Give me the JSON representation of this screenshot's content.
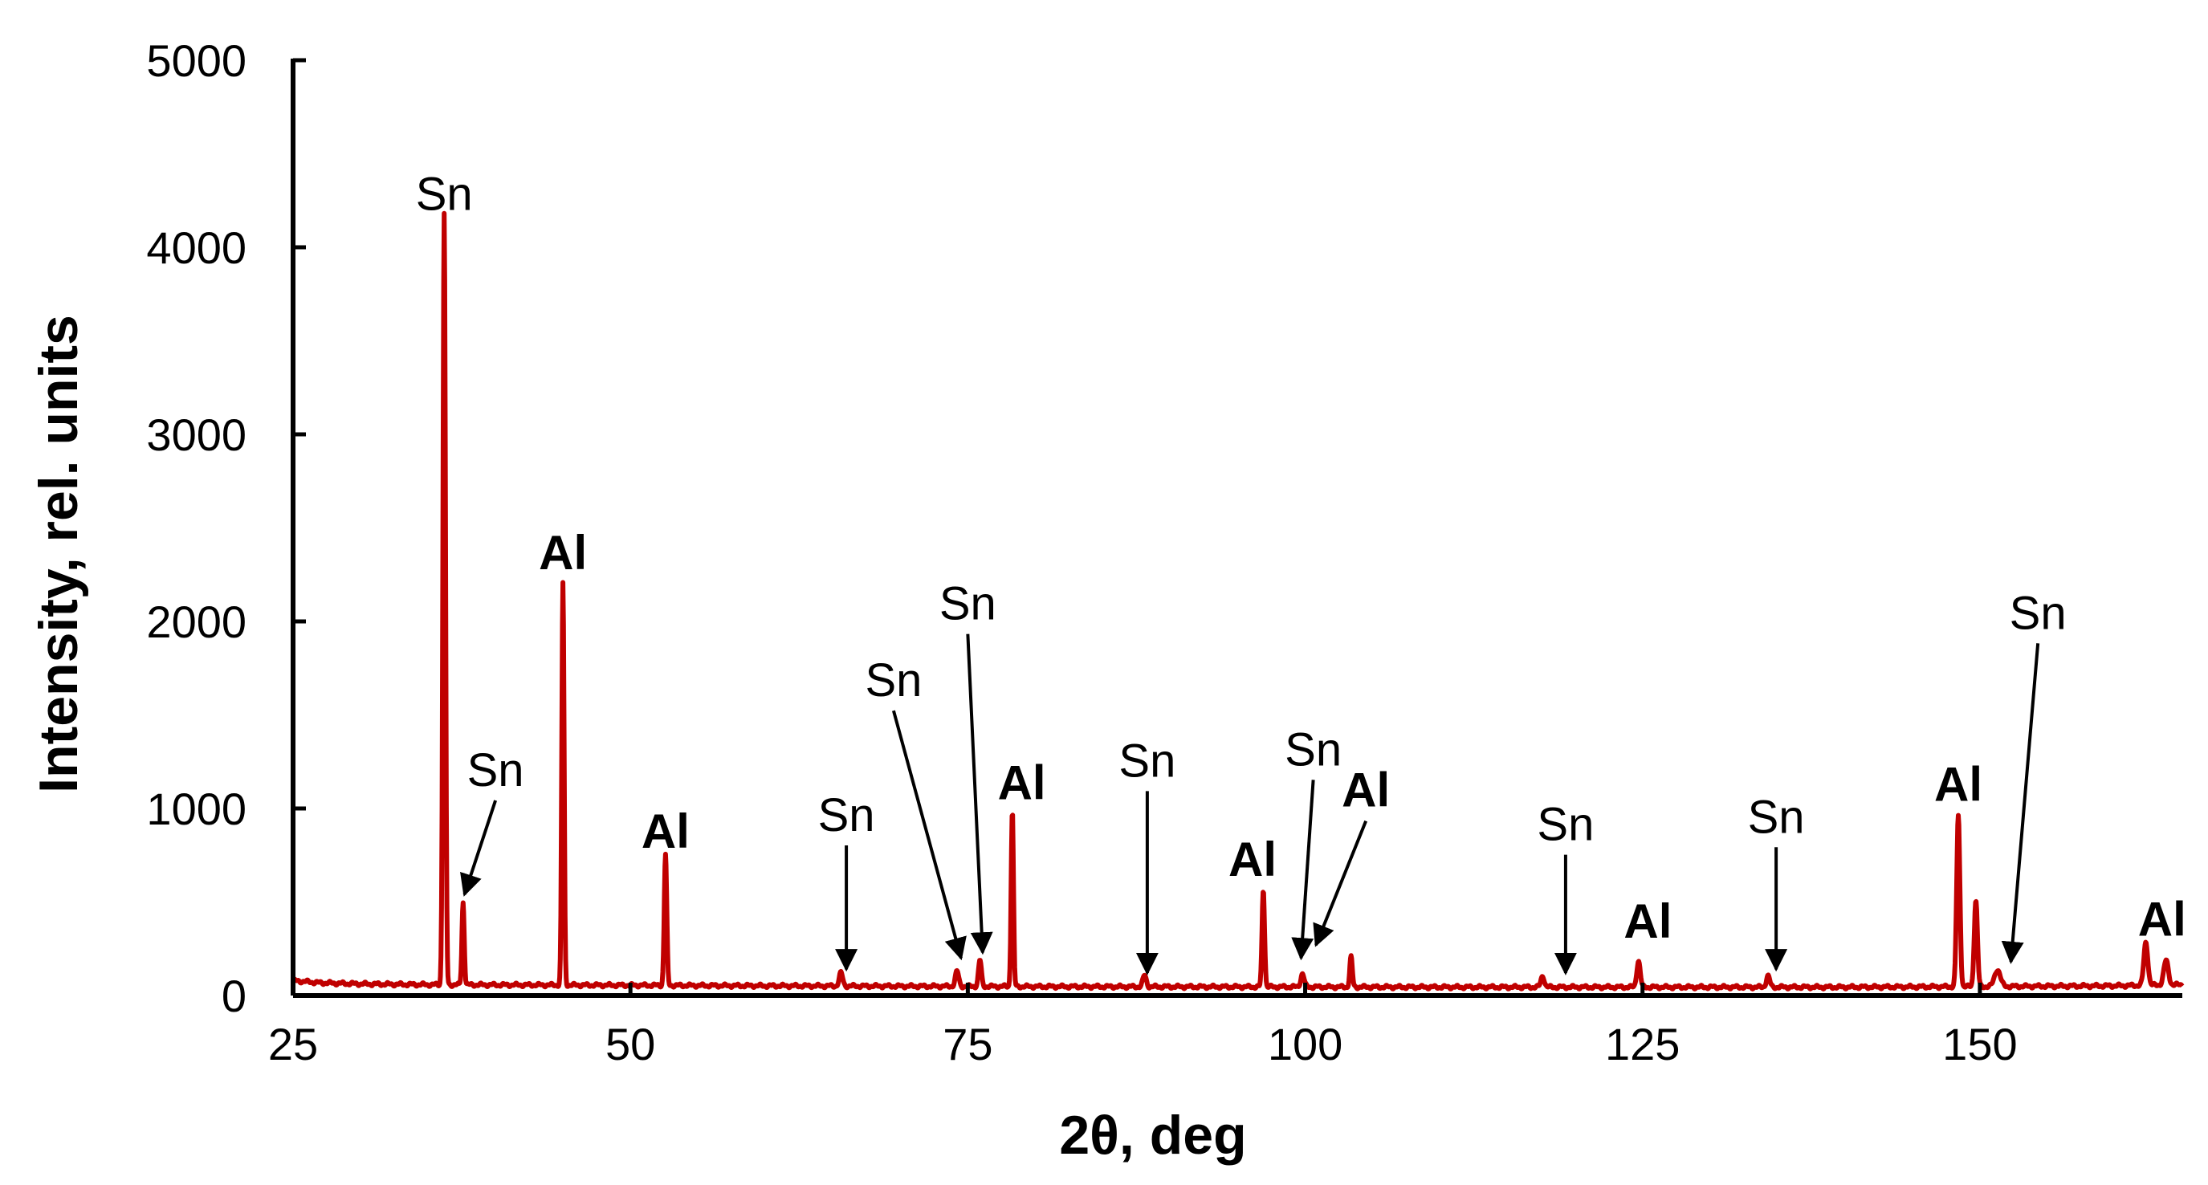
{
  "chart_data": {
    "type": "line",
    "title": "",
    "xlabel": "2θ, deg",
    "ylabel": "Intensity, rel. units",
    "xlim": [
      25,
      165
    ],
    "ylim": [
      0,
      5000
    ],
    "xticks": [
      25,
      50,
      75,
      100,
      125,
      150
    ],
    "yticks": [
      0,
      1000,
      2000,
      3000,
      4000,
      5000
    ],
    "grid": false,
    "legend": "none",
    "series": [
      {
        "color": "#C00000",
        "baseline": [
          [
            25,
            80
          ],
          [
            27,
            68
          ],
          [
            30,
            62
          ],
          [
            35,
            58
          ],
          [
            40,
            57
          ],
          [
            50,
            55
          ],
          [
            60,
            52
          ],
          [
            70,
            50
          ],
          [
            80,
            48
          ],
          [
            90,
            47
          ],
          [
            100,
            46
          ],
          [
            110,
            45
          ],
          [
            120,
            45
          ],
          [
            130,
            45
          ],
          [
            140,
            45
          ],
          [
            150,
            48
          ],
          [
            160,
            52
          ],
          [
            165,
            58
          ]
        ],
        "peaks": [
          {
            "x": 36.2,
            "y": 4120,
            "w": 0.22
          },
          {
            "x": 37.6,
            "y": 440,
            "w": 0.2
          },
          {
            "x": 45.0,
            "y": 2150,
            "w": 0.2
          },
          {
            "x": 52.6,
            "y": 700,
            "w": 0.22
          },
          {
            "x": 65.6,
            "y": 70,
            "w": 0.3
          },
          {
            "x": 74.2,
            "y": 80,
            "w": 0.3
          },
          {
            "x": 75.9,
            "y": 140,
            "w": 0.25
          },
          {
            "x": 78.3,
            "y": 940,
            "w": 0.2
          },
          {
            "x": 88.1,
            "y": 60,
            "w": 0.3
          },
          {
            "x": 96.9,
            "y": 520,
            "w": 0.22
          },
          {
            "x": 99.8,
            "y": 70,
            "w": 0.3
          },
          {
            "x": 103.4,
            "y": 160,
            "w": 0.22
          },
          {
            "x": 117.6,
            "y": 60,
            "w": 0.3
          },
          {
            "x": 124.7,
            "y": 140,
            "w": 0.3
          },
          {
            "x": 134.3,
            "y": 60,
            "w": 0.3
          },
          {
            "x": 148.4,
            "y": 910,
            "w": 0.28
          },
          {
            "x": 149.7,
            "y": 460,
            "w": 0.28
          },
          {
            "x": 151.3,
            "y": 90,
            "w": 0.5
          },
          {
            "x": 162.3,
            "y": 230,
            "w": 0.35
          },
          {
            "x": 163.8,
            "y": 130,
            "w": 0.4
          }
        ]
      }
    ],
    "annotations": [
      {
        "text": "Sn",
        "bold": false,
        "x": 36.2,
        "y": 4200
      },
      {
        "text": "Sn",
        "bold": false,
        "x": 40.0,
        "y": 1120,
        "arrow_to": [
          37.7,
          540
        ]
      },
      {
        "text": "Al",
        "bold": true,
        "x": 45.0,
        "y": 2280
      },
      {
        "text": "Al",
        "bold": true,
        "x": 52.6,
        "y": 790
      },
      {
        "text": "Sn",
        "bold": false,
        "x": 66.0,
        "y": 880,
        "arrow_to": [
          66.0,
          140
        ]
      },
      {
        "text": "Sn",
        "bold": false,
        "x": 69.5,
        "y": 1600,
        "arrow_to": [
          74.5,
          200
        ]
      },
      {
        "text": "Sn",
        "bold": false,
        "x": 75.0,
        "y": 2010,
        "arrow_to": [
          76.1,
          230
        ]
      },
      {
        "text": "Al",
        "bold": true,
        "x": 79.0,
        "y": 1050
      },
      {
        "text": "Sn",
        "bold": false,
        "x": 88.3,
        "y": 1170,
        "arrow_to": [
          88.3,
          120
        ]
      },
      {
        "text": "Al",
        "bold": true,
        "x": 96.1,
        "y": 640
      },
      {
        "text": "Sn",
        "bold": false,
        "x": 100.6,
        "y": 1230,
        "arrow_to": [
          99.7,
          200
        ]
      },
      {
        "text": "Al",
        "bold": true,
        "x": 104.5,
        "y": 1010,
        "arrow_to": [
          100.8,
          270
        ]
      },
      {
        "text": "Sn",
        "bold": false,
        "x": 119.3,
        "y": 830,
        "arrow_to": [
          119.3,
          120
        ]
      },
      {
        "text": "Al",
        "bold": true,
        "x": 125.4,
        "y": 310
      },
      {
        "text": "Sn",
        "bold": false,
        "x": 134.9,
        "y": 870,
        "arrow_to": [
          134.9,
          140
        ]
      },
      {
        "text": "Al",
        "bold": true,
        "x": 148.4,
        "y": 1040
      },
      {
        "text": "Sn",
        "bold": false,
        "x": 154.3,
        "y": 1960,
        "arrow_to": [
          152.3,
          180
        ]
      },
      {
        "text": "Al",
        "bold": true,
        "x": 163.5,
        "y": 320
      }
    ]
  }
}
